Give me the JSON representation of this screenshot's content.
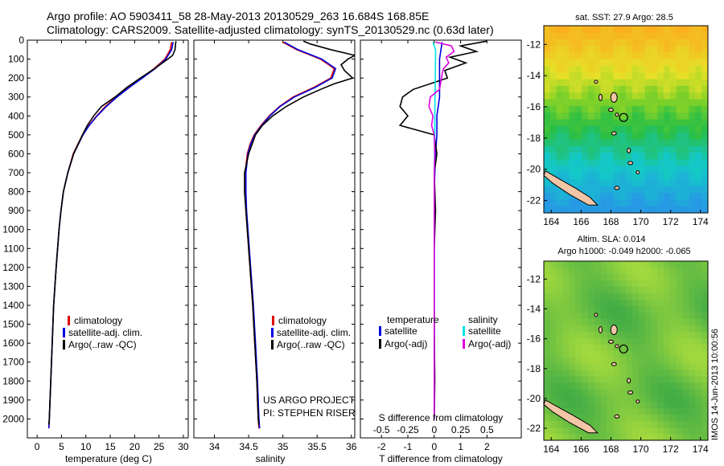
{
  "header": {
    "line1": "Argo profile: AO 5903411_58 28-May-2013 20130529_263 16.684S 168.85E",
    "line2": "Climatology: CARS2009. Satellite-adjusted climatology: synTS_20130529.nc (0.63d later)"
  },
  "watermark": "IMOS 14-Jun-2013 10:00:56",
  "project": {
    "line1": "US ARGO PROJECT",
    "line2": "PI: STEPHEN RISER"
  },
  "colors": {
    "climatology": "#e00000",
    "satellite": "#0000e0",
    "argo": "#000000",
    "salinity_satellite": "#00e5e5",
    "salinity_argo": "#e000e0",
    "land": "#f2c6a6"
  },
  "chart_data": [
    {
      "type": "line",
      "name": "temperature-profile",
      "xlabel": "temperature (deg C)",
      "ylabel": "",
      "xlim": [
        -2,
        31
      ],
      "ylim": [
        2100,
        0
      ],
      "x_ticks": [
        0,
        5,
        10,
        15,
        20,
        25,
        30
      ],
      "y_ticks": [
        0,
        100,
        200,
        300,
        400,
        500,
        600,
        700,
        800,
        900,
        1000,
        1100,
        1200,
        1300,
        1400,
        1500,
        1600,
        1700,
        1800,
        1900,
        2000
      ],
      "legend": [
        "climatology",
        "satellite-adj. clim.",
        "Argo(..raw -QC)"
      ],
      "series": [
        {
          "name": "climatology",
          "depth": [
            10,
            50,
            100,
            150,
            200,
            250,
            300,
            350,
            400,
            450,
            500,
            600,
            700,
            800,
            900,
            1000,
            1200,
            1400,
            1600,
            1800,
            2000,
            2050
          ],
          "values": [
            27.6,
            27.3,
            26.2,
            24.0,
            21.4,
            18.7,
            16.2,
            14.0,
            12.2,
            10.6,
            9.3,
            7.4,
            6.3,
            5.4,
            4.9,
            4.5,
            3.9,
            3.4,
            3.1,
            2.8,
            2.5,
            2.4
          ]
        },
        {
          "name": "satellite-adj. clim.",
          "depth": [
            10,
            50,
            100,
            150,
            200,
            250,
            300,
            350,
            400,
            450,
            500,
            600,
            700,
            800,
            900,
            1000,
            1200,
            1400,
            1600,
            1800,
            2000,
            2050
          ],
          "values": [
            27.9,
            27.6,
            26.4,
            24.2,
            21.6,
            18.9,
            16.4,
            14.2,
            12.3,
            10.7,
            9.4,
            7.5,
            6.3,
            5.4,
            4.9,
            4.5,
            3.9,
            3.4,
            3.1,
            2.8,
            2.5,
            2.4
          ]
        },
        {
          "name": "Argo(..raw -QC)",
          "depth": [
            5,
            20,
            50,
            80,
            100,
            150,
            200,
            250,
            300,
            350,
            400,
            450,
            500,
            600,
            700,
            800,
            900,
            1000,
            1200,
            1400,
            1600,
            1800,
            2000,
            2030
          ],
          "values": [
            28.5,
            28.4,
            28.3,
            27.8,
            26.8,
            24.1,
            21.2,
            18.4,
            16.0,
            13.2,
            11.6,
            10.3,
            9.3,
            7.5,
            6.3,
            5.4,
            4.9,
            4.5,
            3.9,
            3.4,
            3.1,
            2.8,
            2.5,
            2.4
          ]
        }
      ]
    },
    {
      "type": "line",
      "name": "salinity-profile",
      "xlabel": "salinity",
      "ylabel": "",
      "xlim": [
        33.7,
        36.05
      ],
      "ylim": [
        2100,
        0
      ],
      "x_ticks": [
        34,
        34.5,
        35,
        35.5,
        36
      ],
      "legend": [
        "climatology",
        "satellite-adj. clim.",
        "Argo(..raw -QC)"
      ],
      "series": [
        {
          "name": "climatology",
          "depth": [
            10,
            50,
            100,
            150,
            200,
            250,
            300,
            350,
            400,
            450,
            500,
            550,
            600,
            700,
            800,
            900,
            1000,
            1200,
            1400,
            1600,
            1800,
            2000,
            2050
          ],
          "values": [
            35.0,
            35.2,
            35.55,
            35.75,
            35.7,
            35.45,
            35.15,
            34.95,
            34.8,
            34.68,
            34.58,
            34.52,
            34.48,
            34.45,
            34.45,
            34.46,
            34.48,
            34.52,
            34.56,
            34.59,
            34.62,
            34.64,
            34.65
          ]
        },
        {
          "name": "satellite-adj. clim.",
          "depth": [
            10,
            50,
            100,
            150,
            200,
            250,
            300,
            350,
            400,
            450,
            500,
            550,
            600,
            700,
            800,
            900,
            1000,
            1200,
            1400,
            1600,
            1800,
            2000,
            2050
          ],
          "values": [
            35.02,
            35.22,
            35.57,
            35.77,
            35.72,
            35.47,
            35.17,
            34.96,
            34.81,
            34.69,
            34.59,
            34.53,
            34.49,
            34.46,
            34.46,
            34.47,
            34.49,
            34.53,
            34.57,
            34.6,
            34.63,
            34.65,
            34.66
          ]
        },
        {
          "name": "Argo(..raw -QC)",
          "depth": [
            5,
            20,
            50,
            80,
            100,
            130,
            160,
            200,
            230,
            260,
            300,
            350,
            400,
            450,
            500,
            600,
            700,
            800,
            900,
            1000,
            1200,
            1400,
            1600,
            1800,
            2000,
            2030
          ],
          "values": [
            35.3,
            35.4,
            35.7,
            36.05,
            35.95,
            35.85,
            35.9,
            36.02,
            35.75,
            35.55,
            35.3,
            35.05,
            34.85,
            34.7,
            34.6,
            34.5,
            34.44,
            34.44,
            34.46,
            34.48,
            34.52,
            34.56,
            34.59,
            34.62,
            34.64,
            34.65
          ]
        }
      ]
    },
    {
      "type": "line",
      "name": "difference-profile",
      "xlabel": "T difference from climatology",
      "x_ticks_top": [
        -2,
        -1,
        0,
        1,
        2
      ],
      "x_ticks_bottom": [
        -0.5,
        -0.25,
        0,
        0.25,
        0.5
      ],
      "x_secondary_label": "S difference from climatology",
      "xlim": [
        -2.8,
        3.3
      ],
      "ylim": [
        2100,
        0
      ],
      "legend_headers": [
        "temperature",
        "salinity"
      ],
      "legend": [
        "satellite",
        "Argo(-adj)",
        "satellite",
        "Argo(-adj)"
      ],
      "series": [
        {
          "name": "temperature satellite",
          "depth": [
            10,
            100,
            200,
            300,
            400,
            500,
            600,
            800,
            1000,
            1500,
            2000
          ],
          "values": [
            0.3,
            0.2,
            0.2,
            0.2,
            0.1,
            0.1,
            0.05,
            0.0,
            0.0,
            0.0,
            0.0
          ]
        },
        {
          "name": "temperature Argo(-adj)",
          "depth": [
            5,
            30,
            60,
            90,
            120,
            160,
            200,
            260,
            300,
            350,
            400,
            450,
            500,
            600,
            700,
            900,
            1100,
            1500,
            1800,
            2000
          ],
          "values": [
            2.0,
            1.0,
            1.6,
            0.6,
            1.2,
            0.4,
            0.5,
            -0.8,
            -1.2,
            -1.3,
            -1.0,
            -1.3,
            0.0,
            0.1,
            0.0,
            0.05,
            0.0,
            0.0,
            0.02,
            0.0
          ]
        },
        {
          "name": "salinity satellite",
          "depth": [
            10,
            50,
            100,
            200,
            300,
            400,
            500,
            600,
            800,
            1000,
            1500,
            2000
          ],
          "values": [
            -0.05,
            0.05,
            0.05,
            0.04,
            0.03,
            0.02,
            0.02,
            0.01,
            0.0,
            0.0,
            0.0,
            0.0
          ]
        },
        {
          "name": "salinity Argo(-adj)",
          "depth": [
            10,
            30,
            60,
            90,
            120,
            150,
            180,
            220,
            260,
            300,
            350,
            400,
            450,
            500,
            600,
            700,
            900,
            1200,
            1500,
            1800,
            2000
          ],
          "values": [
            0.05,
            0.65,
            0.75,
            0.45,
            0.55,
            0.35,
            0.3,
            0.25,
            0.2,
            -0.15,
            -0.2,
            -0.05,
            -0.1,
            0.0,
            0.02,
            0.0,
            0.0,
            0.0,
            0.0,
            0.0,
            0.0
          ]
        }
      ]
    },
    {
      "type": "heatmap",
      "name": "sst-map",
      "title": "sat. SST: 27.9 Argo: 28.5",
      "x_ticks": [
        164,
        166,
        168,
        170,
        172,
        174
      ],
      "y_ticks": [
        -12,
        -14,
        -16,
        -18,
        -20,
        -22
      ],
      "xlim": [
        163.5,
        174.5
      ],
      "ylim": [
        -22.8,
        -10.8
      ],
      "marker": {
        "lon": 168.85,
        "lat": -16.684
      }
    },
    {
      "type": "heatmap",
      "name": "sla-map",
      "title": "Altim. SLA: 0.014",
      "subtitle": "Argo h1000: -0.049 h2000: -0.065",
      "x_ticks": [
        164,
        166,
        168,
        170,
        172,
        174
      ],
      "y_ticks": [
        -12,
        -14,
        -16,
        -18,
        -20,
        -22
      ],
      "xlim": [
        163.5,
        174.5
      ],
      "ylim": [
        -22.8,
        -10.8
      ],
      "marker": {
        "lon": 168.85,
        "lat": -16.684
      }
    }
  ]
}
